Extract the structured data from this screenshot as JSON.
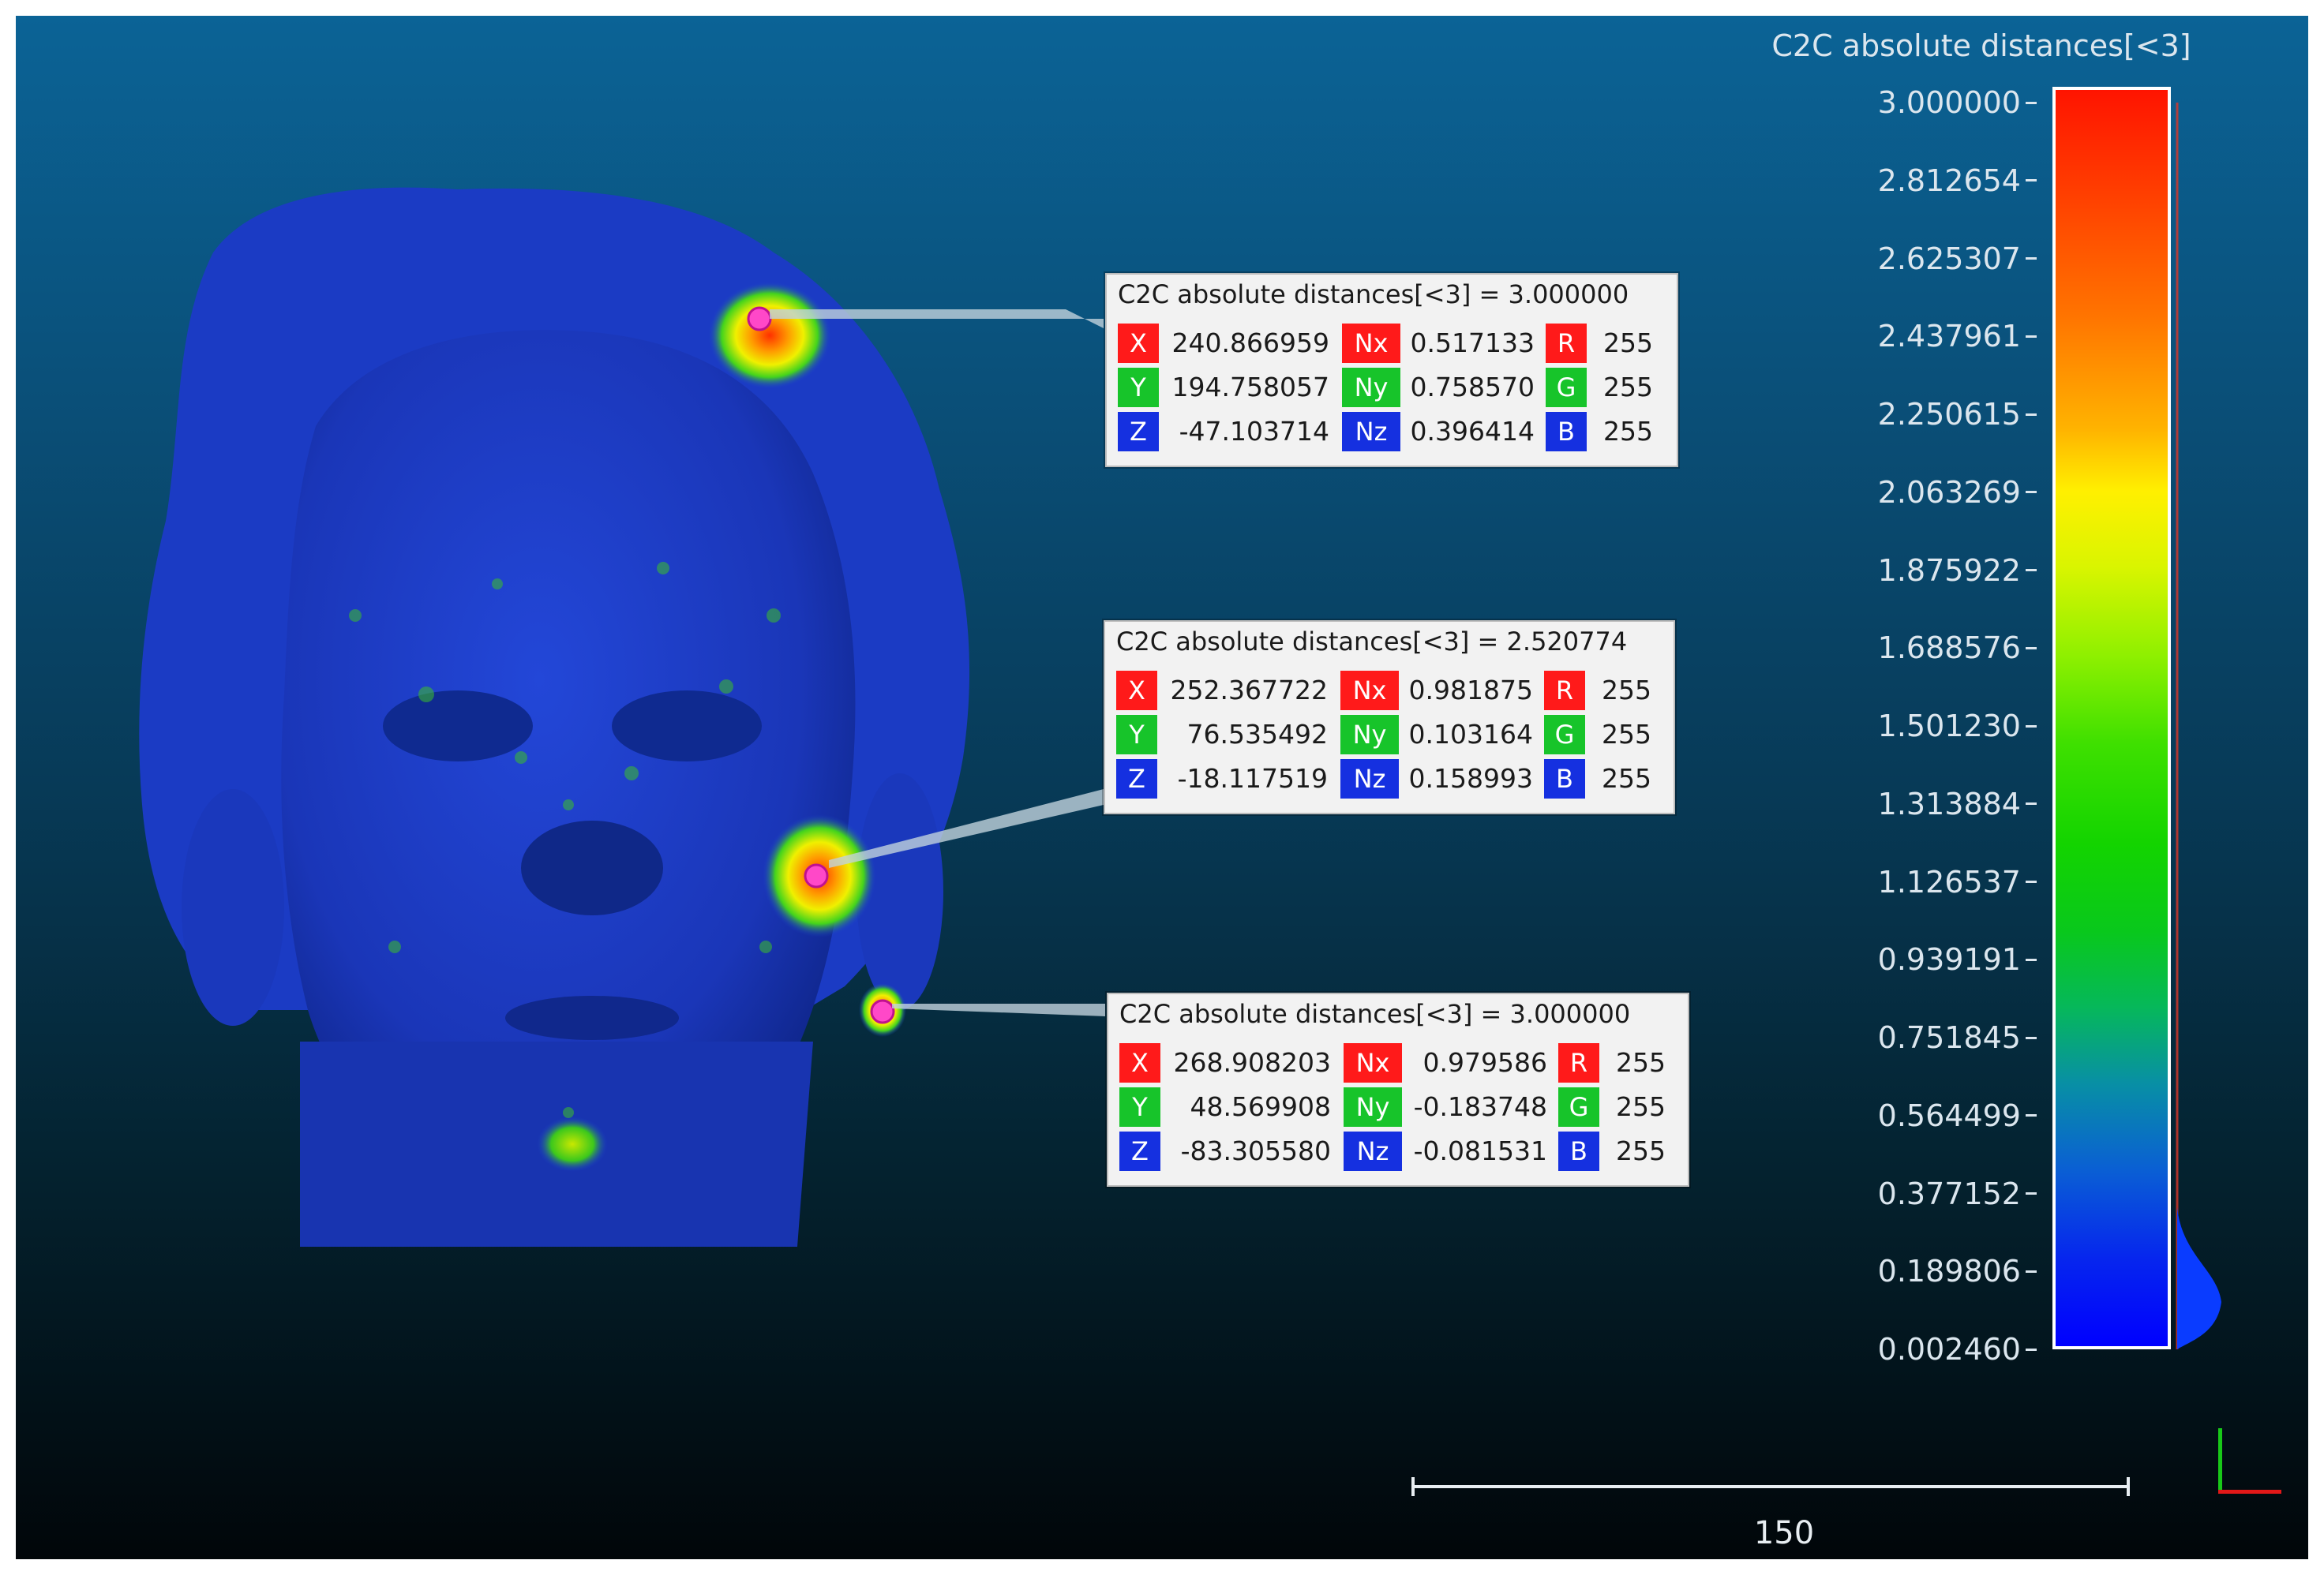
{
  "scale": {
    "title": "C2C absolute distances[<3]",
    "ticks": [
      "3.000000",
      "2.812654",
      "2.625307",
      "2.437961",
      "2.250615",
      "2.063269",
      "1.875922",
      "1.688576",
      "1.501230",
      "1.313884",
      "1.126537",
      "0.939191",
      "0.751845",
      "0.564499",
      "0.377152",
      "0.189806",
      "0.002460"
    ]
  },
  "labels": [
    {
      "title": "C2C absolute distances[<3] = 3.000000",
      "x": "240.866959",
      "y": "194.758057",
      "z": "-47.103714",
      "nx": "0.517133",
      "ny": "0.758570",
      "nz": "0.396414",
      "r": "255",
      "g": "255",
      "b": "255"
    },
    {
      "title": "C2C absolute distances[<3] = 2.520774",
      "x": "252.367722",
      "y": "76.535492",
      "z": "-18.117519",
      "nx": "0.981875",
      "ny": "0.103164",
      "nz": "0.158993",
      "r": "255",
      "g": "255",
      "b": "255"
    },
    {
      "title": "C2C absolute distances[<3] = 3.000000",
      "x": "268.908203",
      "y": "48.569908",
      "z": "-83.305580",
      "nx": "0.979586",
      "ny": "-0.183748",
      "nz": "-0.081531",
      "r": "255",
      "g": "255",
      "b": "255"
    }
  ],
  "tags": {
    "x": "X",
    "y": "Y",
    "z": "Z",
    "nx": "Nx",
    "ny": "Ny",
    "nz": "Nz",
    "r": "R",
    "g": "G",
    "b": "B"
  },
  "ruler": {
    "label": "150"
  },
  "colors": {
    "scale_max": "#ff1400",
    "scale_mid": "#fff000",
    "scale_min": "#0000ff",
    "mesh": "#1a3fd0"
  }
}
